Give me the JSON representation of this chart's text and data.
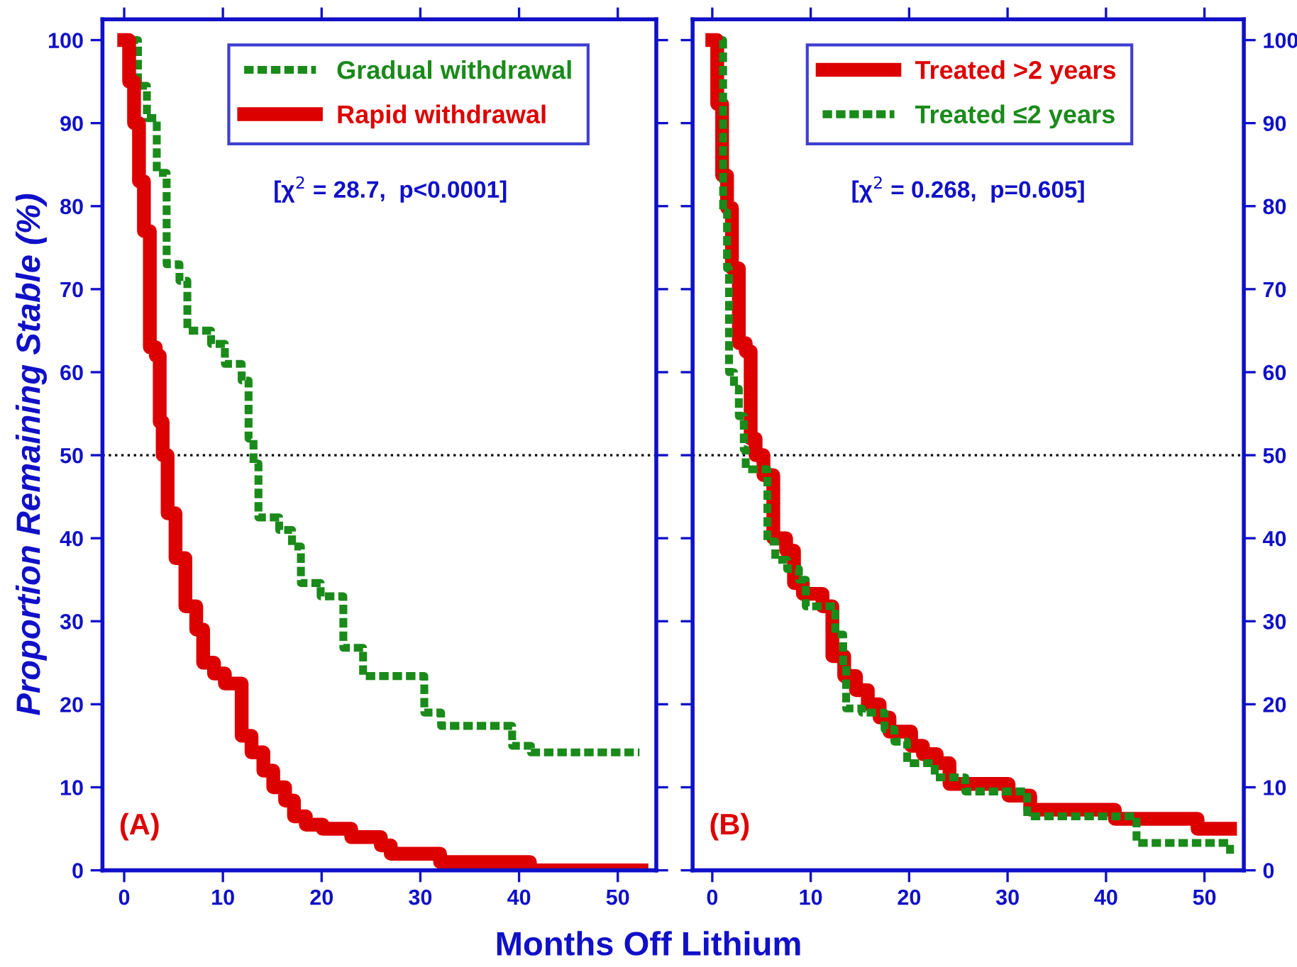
{
  "chart_data": [
    {
      "type": "step",
      "ylabel": "Proportion Remaining Stable (%)",
      "xlabel": "Months Off Lithium",
      "xlim": [
        -2.2,
        53.9
      ],
      "ylim": [
        0,
        102.5
      ],
      "xticks": [
        0,
        10,
        20,
        30,
        40,
        50
      ],
      "yticks": [
        0,
        10,
        20,
        30,
        40,
        50,
        60,
        70,
        80,
        90,
        100
      ],
      "legend": "top right",
      "grid": false,
      "series": [
        {
          "name": "Gradual withdrawal",
          "color": "#1a8a1a",
          "line_style": "dotted",
          "x": [
            0.7,
            1.4,
            2.3,
            3.3,
            4.3,
            5.6,
            6.4,
            8.8,
            10.2,
            11.9,
            12.6,
            13.1,
            13.6,
            15.7,
            17.0,
            17.9,
            19.9,
            22.2,
            24.2,
            30.4,
            32.1,
            39.3,
            41.2,
            52.2
          ],
          "values": [
            100,
            94.5,
            90.6,
            84,
            73,
            71,
            65,
            63.4,
            61,
            59,
            52,
            49,
            42.5,
            41,
            39,
            34.6,
            33,
            26.8,
            23.4,
            19,
            17.4,
            15,
            14.2,
            14.2
          ]
        },
        {
          "name": "Rapid withdrawal",
          "color": "#dd0000",
          "line_style": "solid",
          "x": [
            0,
            0.5,
            1.0,
            1.5,
            2.0,
            2.6,
            3.2,
            3.6,
            3.9,
            4.4,
            5.2,
            6.2,
            7.3,
            8.0,
            9.1,
            10.2,
            11.9,
            12.9,
            14.1,
            15.1,
            16.3,
            17.2,
            18.4,
            20.1,
            23.0,
            26.0,
            27.0,
            32.0,
            41.1,
            52.4
          ],
          "values": [
            100,
            95,
            90,
            83,
            77,
            63,
            62,
            54,
            50,
            43,
            37.6,
            31.8,
            29,
            25,
            23.7,
            22.5,
            16.2,
            14.2,
            12,
            10,
            8.4,
            6.5,
            5.5,
            5,
            4,
            3,
            2,
            1,
            0,
            0
          ]
        }
      ],
      "ref_lines": [
        {
          "axis": "y",
          "value": 50,
          "color": "#000000",
          "line_style": "dotted"
        }
      ],
      "annotations": [
        "[χ$^{2}$ = 28.7,  p<0.0001]",
        "(A)"
      ]
    },
    {
      "type": "step",
      "xlim": [
        -2.0,
        54.0
      ],
      "y2lim": [
        0,
        102.5
      ],
      "xticks": [
        0,
        10,
        20,
        30,
        40,
        50
      ],
      "y2ticks": [
        0,
        10,
        20,
        30,
        40,
        50,
        60,
        70,
        80,
        90,
        100
      ],
      "legend": "top right",
      "grid": false,
      "series": [
        {
          "name": "Treated >2 years",
          "color": "#dd0000",
          "line_style": "solid",
          "axis": "y2",
          "x": [
            0,
            0.5,
            1.0,
            1.5,
            2.0,
            2.7,
            3.4,
            3.9,
            4.4,
            5.2,
            6.2,
            7.5,
            8.3,
            9.2,
            11.2,
            12.2,
            13.4,
            14.6,
            15.8,
            17.0,
            18.0,
            20.2,
            21.4,
            22.8,
            24.1,
            30.1,
            32.3,
            40.9,
            49.3,
            52.6
          ],
          "values": [
            100,
            92.3,
            83.7,
            79.8,
            72.5,
            63.5,
            62.5,
            52,
            50,
            47.6,
            40,
            38.5,
            34.6,
            33.3,
            31.8,
            25.8,
            23.4,
            21.7,
            20,
            18.4,
            16.7,
            15,
            14,
            12.9,
            10.4,
            9,
            7.3,
            6.2,
            5,
            5
          ]
        },
        {
          "name": "Treated ≤2 years",
          "color": "#1a8a1a",
          "line_style": "dotted",
          "axis": "y2",
          "x": [
            1.0,
            1.1,
            1.5,
            1.7,
            2.2,
            2.7,
            3.2,
            3.4,
            5.6,
            6.4,
            7.6,
            8.8,
            9.5,
            12.5,
            13.3,
            13.6,
            15.2,
            17.5,
            18.5,
            19.8,
            22.6,
            25.7,
            32.0,
            43.1,
            52.6
          ],
          "values": [
            100,
            79.3,
            72.5,
            60,
            58,
            54.7,
            50.7,
            48.3,
            39.6,
            37.4,
            36.3,
            35,
            31.8,
            28.4,
            24.6,
            19.5,
            19,
            17,
            15.5,
            12.9,
            11.2,
            9.5,
            6.5,
            3.3,
            2
          ]
        }
      ],
      "ref_lines": [
        {
          "axis": "y2",
          "value": 50,
          "color": "#000000",
          "line_style": "dotted"
        }
      ],
      "annotations": [
        "[χ$^{2}$ = 0.268,  p=0.605]",
        "(B)"
      ]
    }
  ]
}
